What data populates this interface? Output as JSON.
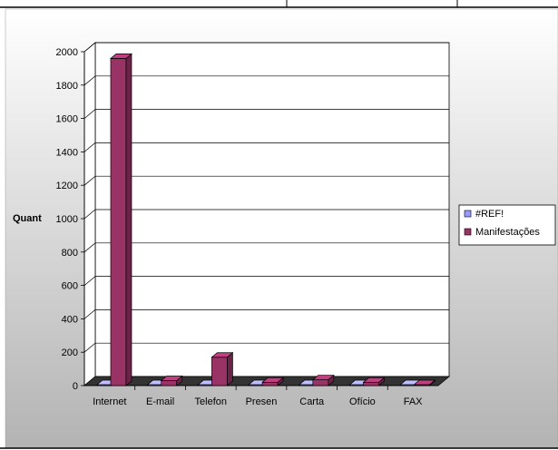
{
  "chart_data": {
    "type": "bar",
    "categories": [
      "Internet",
      "E-mail",
      "Telefon",
      "Presen",
      "Carta",
      "Ofício",
      "FAX"
    ],
    "series": [
      {
        "name": "#REF!",
        "values": [
          0,
          0,
          0,
          0,
          0,
          0,
          0
        ],
        "color": "#9999ff"
      },
      {
        "name": "Manifestações",
        "values": [
          1960,
          30,
          170,
          20,
          35,
          20,
          2
        ],
        "color": "#993366"
      }
    ],
    "title": "",
    "xlabel": "",
    "ylabel": "Quant",
    "ylim": [
      0,
      2000
    ],
    "yticks": [
      0,
      200,
      400,
      600,
      800,
      1000,
      1200,
      1400,
      1600,
      1800,
      2000
    ],
    "grid": true,
    "legend": "right",
    "three_d": true,
    "colors": {
      "wall": "#ffffff",
      "floor": "#333333",
      "background_top": "#ffffff",
      "background_bottom": "#b3b3b3"
    }
  }
}
